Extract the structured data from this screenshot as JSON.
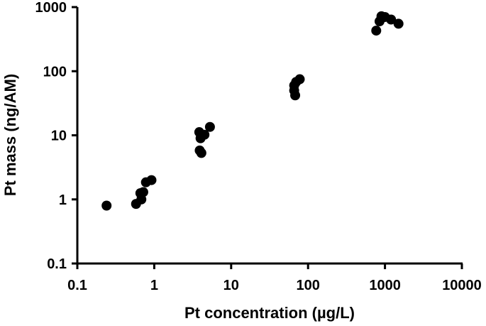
{
  "chart_data": {
    "type": "scatter",
    "xlabel": "Pt concentration (µg/L)",
    "ylabel": "Pt mass (ng/AM)",
    "xscale": "log",
    "yscale": "log",
    "xlim": [
      0.1,
      10000
    ],
    "ylim": [
      0.1,
      1000
    ],
    "x_ticks": [
      "0.1",
      "1",
      "10",
      "100",
      "1000",
      "10000"
    ],
    "y_ticks": [
      "0.1",
      "1",
      "10",
      "100",
      "1000"
    ],
    "grid": false,
    "marker_color": "#000000",
    "points": [
      {
        "x": 0.24,
        "y": 0.8
      },
      {
        "x": 0.58,
        "y": 0.85
      },
      {
        "x": 0.68,
        "y": 1.0
      },
      {
        "x": 0.66,
        "y": 1.25
      },
      {
        "x": 0.72,
        "y": 1.3
      },
      {
        "x": 0.78,
        "y": 1.85
      },
      {
        "x": 0.92,
        "y": 2.0
      },
      {
        "x": 3.9,
        "y": 5.8
      },
      {
        "x": 4.1,
        "y": 5.3
      },
      {
        "x": 4.0,
        "y": 9.0
      },
      {
        "x": 4.5,
        "y": 10.2
      },
      {
        "x": 3.85,
        "y": 11.2
      },
      {
        "x": 5.3,
        "y": 13.5
      },
      {
        "x": 68,
        "y": 42
      },
      {
        "x": 66,
        "y": 50
      },
      {
        "x": 66,
        "y": 60
      },
      {
        "x": 70,
        "y": 68
      },
      {
        "x": 78,
        "y": 75
      },
      {
        "x": 770,
        "y": 430
      },
      {
        "x": 850,
        "y": 600
      },
      {
        "x": 900,
        "y": 720
      },
      {
        "x": 1000,
        "y": 700
      },
      {
        "x": 1200,
        "y": 640
      },
      {
        "x": 1500,
        "y": 550
      }
    ]
  }
}
